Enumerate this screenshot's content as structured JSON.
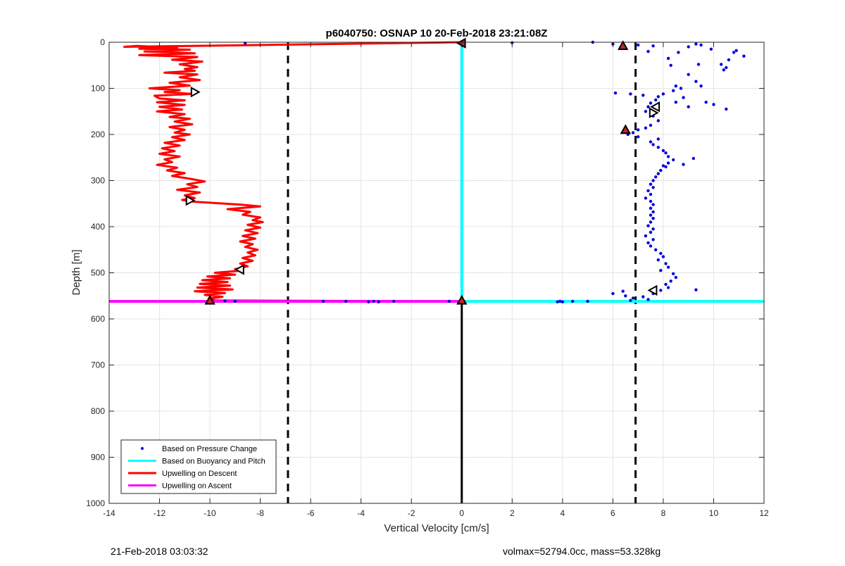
{
  "chart_data": {
    "type": "line",
    "title": "p6040750: OSNAP 10 20-Feb-2018 23:21:08Z",
    "xlabel": "Vertical Velocity [cm/s]",
    "ylabel": "Depth [m]",
    "xlim": [
      -14,
      12
    ],
    "ylim": [
      0,
      1000
    ],
    "y_reversed": true,
    "grid": true,
    "xticks": [
      -14,
      -12,
      -10,
      -8,
      -6,
      -4,
      -2,
      0,
      2,
      4,
      6,
      8,
      10,
      12
    ],
    "yticks": [
      0,
      100,
      200,
      300,
      400,
      500,
      600,
      700,
      800,
      900,
      1000
    ],
    "legend_position": "bottom-left",
    "legend": [
      {
        "label": "Based on Pressure Change",
        "color": "#0000ff",
        "style": "dot"
      },
      {
        "label": "Based on Buoyancy and Pitch",
        "color": "#00ffff",
        "style": "line"
      },
      {
        "label": "Upwelling on Descent",
        "color": "#ff0000",
        "style": "line"
      },
      {
        "label": "Upwelling on Ascent",
        "color": "#ff00ff",
        "style": "line"
      }
    ],
    "series": [
      {
        "name": "Based on Pressure Change",
        "color": "#0000dd",
        "points": [
          [
            -8.6,
            2
          ],
          [
            2.0,
            1
          ],
          [
            5.2,
            0
          ],
          [
            6.0,
            4
          ],
          [
            7.0,
            6
          ],
          [
            7.6,
            8
          ],
          [
            9.3,
            4
          ],
          [
            9.5,
            6
          ],
          [
            9.9,
            15
          ],
          [
            10.9,
            18
          ],
          [
            11.2,
            30
          ],
          [
            10.8,
            22
          ],
          [
            10.6,
            38
          ],
          [
            10.3,
            48
          ],
          [
            10.5,
            55
          ],
          [
            10.4,
            60
          ],
          [
            9.0,
            10
          ],
          [
            8.6,
            22
          ],
          [
            7.4,
            20
          ],
          [
            8.2,
            35
          ],
          [
            9.4,
            48
          ],
          [
            8.3,
            50
          ],
          [
            9.0,
            70
          ],
          [
            9.3,
            85
          ],
          [
            8.7,
            100
          ],
          [
            8.4,
            105
          ],
          [
            8.0,
            112
          ],
          [
            7.8,
            118
          ],
          [
            7.7,
            125
          ],
          [
            7.5,
            132
          ],
          [
            7.4,
            140
          ],
          [
            8.5,
            95
          ],
          [
            9.5,
            95
          ],
          [
            8.8,
            120
          ],
          [
            8.5,
            130
          ],
          [
            7.3,
            150
          ],
          [
            7.6,
            160
          ],
          [
            7.8,
            170
          ],
          [
            6.1,
            110
          ],
          [
            6.7,
            112
          ],
          [
            7.2,
            115
          ],
          [
            9.7,
            130
          ],
          [
            10.0,
            135
          ],
          [
            9.0,
            140
          ],
          [
            10.5,
            145
          ],
          [
            7.5,
            180
          ],
          [
            7.3,
            186
          ],
          [
            7.0,
            190
          ],
          [
            6.8,
            196
          ],
          [
            6.6,
            200
          ],
          [
            7.0,
            205
          ],
          [
            7.8,
            210
          ],
          [
            7.5,
            216
          ],
          [
            7.6,
            222
          ],
          [
            7.8,
            228
          ],
          [
            8.0,
            235
          ],
          [
            8.1,
            240
          ],
          [
            8.2,
            248
          ],
          [
            8.4,
            255
          ],
          [
            8.2,
            262
          ],
          [
            8.0,
            268
          ],
          [
            9.2,
            252
          ],
          [
            8.8,
            265
          ],
          [
            8.1,
            270
          ],
          [
            7.9,
            278
          ],
          [
            7.8,
            285
          ],
          [
            7.7,
            292
          ],
          [
            7.6,
            300
          ],
          [
            7.5,
            308
          ],
          [
            7.6,
            315
          ],
          [
            7.4,
            322
          ],
          [
            7.5,
            330
          ],
          [
            7.3,
            338
          ],
          [
            7.5,
            345
          ],
          [
            7.6,
            352
          ],
          [
            7.5,
            360
          ],
          [
            7.6,
            368
          ],
          [
            7.5,
            375
          ],
          [
            7.6,
            382
          ],
          [
            7.5,
            390
          ],
          [
            7.4,
            398
          ],
          [
            7.6,
            405
          ],
          [
            7.5,
            412
          ],
          [
            7.3,
            420
          ],
          [
            7.6,
            428
          ],
          [
            7.4,
            435
          ],
          [
            7.5,
            442
          ],
          [
            7.7,
            450
          ],
          [
            7.9,
            458
          ],
          [
            8.0,
            465
          ],
          [
            7.8,
            472
          ],
          [
            8.1,
            480
          ],
          [
            8.2,
            488
          ],
          [
            7.9,
            495
          ],
          [
            8.4,
            502
          ],
          [
            8.5,
            510
          ],
          [
            8.3,
            518
          ],
          [
            8.1,
            525
          ],
          [
            8.2,
            532
          ],
          [
            7.9,
            538
          ],
          [
            7.6,
            545
          ],
          [
            9.3,
            537
          ],
          [
            6.4,
            540
          ],
          [
            6.0,
            545
          ],
          [
            6.5,
            550
          ],
          [
            6.8,
            555
          ],
          [
            7.2,
            552
          ],
          [
            7.4,
            558
          ],
          [
            6.7,
            560
          ],
          [
            5.0,
            562
          ],
          [
            4.4,
            562
          ],
          [
            4.0,
            563
          ],
          [
            3.8,
            563
          ],
          [
            3.9,
            562
          ],
          [
            -0.5,
            562
          ],
          [
            -2.7,
            562
          ],
          [
            -3.3,
            563
          ],
          [
            -3.5,
            562
          ],
          [
            -3.7,
            563
          ],
          [
            -4.6,
            562
          ],
          [
            -5.5,
            562
          ],
          [
            -9.0,
            562
          ],
          [
            -9.4,
            561
          ]
        ]
      },
      {
        "name": "Based on Buoyancy and Pitch",
        "color": "#00ffff",
        "points": [
          [
            0,
            0
          ],
          [
            0,
            562
          ],
          [
            12,
            562
          ]
        ]
      },
      {
        "name": "Upwelling on Descent",
        "color": "#ff0000",
        "points": [
          [
            0,
            0
          ],
          [
            -13.4,
            10
          ],
          [
            -12.9,
            8
          ],
          [
            -11.3,
            12
          ],
          [
            -12.8,
            14
          ],
          [
            -10.8,
            16
          ],
          [
            -12.6,
            20
          ],
          [
            -10.6,
            24
          ],
          [
            -12.8,
            28
          ],
          [
            -10.5,
            32
          ],
          [
            -11.5,
            38
          ],
          [
            -10.3,
            42
          ],
          [
            -11.2,
            48
          ],
          [
            -10.5,
            54
          ],
          [
            -11.0,
            58
          ],
          [
            -10.6,
            62
          ],
          [
            -11.8,
            66
          ],
          [
            -10.5,
            70
          ],
          [
            -11.2,
            76
          ],
          [
            -10.4,
            82
          ],
          [
            -11.6,
            88
          ],
          [
            -10.8,
            94
          ],
          [
            -12.4,
            100
          ],
          [
            -11.2,
            104
          ],
          [
            -11.8,
            108
          ],
          [
            -10.7,
            112
          ],
          [
            -12.2,
            116
          ],
          [
            -12.0,
            122
          ],
          [
            -11.0,
            126
          ],
          [
            -12.1,
            130
          ],
          [
            -11.0,
            136
          ],
          [
            -12.0,
            140
          ],
          [
            -11.1,
            146
          ],
          [
            -12.1,
            150
          ],
          [
            -11.0,
            156
          ],
          [
            -11.6,
            162
          ],
          [
            -10.8,
            166
          ],
          [
            -11.4,
            172
          ],
          [
            -10.7,
            178
          ],
          [
            -11.6,
            184
          ],
          [
            -11.0,
            190
          ],
          [
            -11.4,
            196
          ],
          [
            -10.8,
            200
          ],
          [
            -11.5,
            206
          ],
          [
            -11.0,
            212
          ],
          [
            -11.8,
            218
          ],
          [
            -11.2,
            224
          ],
          [
            -11.9,
            230
          ],
          [
            -11.4,
            236
          ],
          [
            -12.0,
            242
          ],
          [
            -11.2,
            248
          ],
          [
            -11.8,
            254
          ],
          [
            -11.5,
            260
          ],
          [
            -12.1,
            266
          ],
          [
            -11.3,
            272
          ],
          [
            -11.7,
            278
          ],
          [
            -11.0,
            284
          ],
          [
            -11.5,
            290
          ],
          [
            -10.8,
            296
          ],
          [
            -10.2,
            302
          ],
          [
            -10.9,
            308
          ],
          [
            -10.5,
            314
          ],
          [
            -11.3,
            320
          ],
          [
            -10.4,
            326
          ],
          [
            -11.0,
            332
          ],
          [
            -10.6,
            338
          ],
          [
            -11.1,
            342
          ],
          [
            -10.6,
            346
          ],
          [
            -8.8,
            352
          ],
          [
            -8.0,
            356
          ],
          [
            -9.3,
            362
          ],
          [
            -8.4,
            368
          ],
          [
            -8.7,
            374
          ],
          [
            -8.0,
            380
          ],
          [
            -8.3,
            386
          ],
          [
            -7.9,
            390
          ],
          [
            -8.5,
            396
          ],
          [
            -8.0,
            402
          ],
          [
            -8.6,
            408
          ],
          [
            -8.1,
            414
          ],
          [
            -8.7,
            420
          ],
          [
            -8.2,
            426
          ],
          [
            -8.8,
            432
          ],
          [
            -8.3,
            438
          ],
          [
            -8.6,
            444
          ],
          [
            -8.1,
            450
          ],
          [
            -8.5,
            456
          ],
          [
            -8.2,
            462
          ],
          [
            -8.7,
            468
          ],
          [
            -8.3,
            474
          ],
          [
            -8.8,
            480
          ],
          [
            -8.5,
            486
          ],
          [
            -9.0,
            492
          ],
          [
            -8.9,
            496
          ],
          [
            -9.8,
            500
          ],
          [
            -9.0,
            504
          ],
          [
            -10.1,
            508
          ],
          [
            -9.2,
            512
          ],
          [
            -10.3,
            516
          ],
          [
            -9.3,
            520
          ],
          [
            -10.4,
            524
          ],
          [
            -9.2,
            528
          ],
          [
            -10.5,
            532
          ],
          [
            -9.1,
            536
          ],
          [
            -10.6,
            540
          ],
          [
            -9.4,
            544
          ],
          [
            -10.2,
            548
          ],
          [
            -9.5,
            552
          ],
          [
            -10.0,
            556
          ],
          [
            -9.8,
            560
          ],
          [
            0,
            562
          ]
        ]
      },
      {
        "name": "Upwelling on Ascent",
        "color": "#ff00ff",
        "points": [
          [
            -14,
            562
          ],
          [
            0,
            562
          ]
        ]
      }
    ],
    "reference_lines": [
      {
        "orientation": "vertical",
        "x": -6.9,
        "style": "dashed",
        "color": "#000000"
      },
      {
        "orientation": "vertical",
        "x": 6.9,
        "style": "dashed",
        "color": "#000000"
      },
      {
        "orientation": "vertical",
        "x": 0,
        "y_from": 562,
        "y_to": 1000,
        "style": "solid",
        "color": "#000000"
      }
    ],
    "markers": [
      {
        "shape": "triangle-up",
        "fill": "#cc2222",
        "x": 6.4,
        "y": 8
      },
      {
        "shape": "triangle-up",
        "fill": "#cc2222",
        "x": 6.5,
        "y": 190
      },
      {
        "shape": "triangle-up",
        "fill": "#cc2222",
        "x": -10.0,
        "y": 560
      },
      {
        "shape": "triangle-up",
        "fill": "#cc2222",
        "x": 0.0,
        "y": 560
      },
      {
        "shape": "triangle-left",
        "fill": "#cc2222",
        "x": 0.0,
        "y": 2
      },
      {
        "shape": "triangle-right",
        "fill": "#ffffff",
        "x": -10.6,
        "y": 108
      },
      {
        "shape": "triangle-right",
        "fill": "#ffffff",
        "x": -10.8,
        "y": 343
      },
      {
        "shape": "triangle-left",
        "fill": "#ffffff",
        "x": -8.8,
        "y": 493
      },
      {
        "shape": "triangle-left",
        "fill": "#ffffff",
        "x": 7.7,
        "y": 140
      },
      {
        "shape": "triangle-right",
        "fill": "#ffffff",
        "x": 7.6,
        "y": 153
      },
      {
        "shape": "triangle-left",
        "fill": "#ffffff",
        "x": 7.6,
        "y": 538
      }
    ]
  },
  "footer": {
    "timestamp": "21-Feb-2018 03:03:32",
    "summary": "volmax=52794.0cc, mass=53.328kg"
  }
}
